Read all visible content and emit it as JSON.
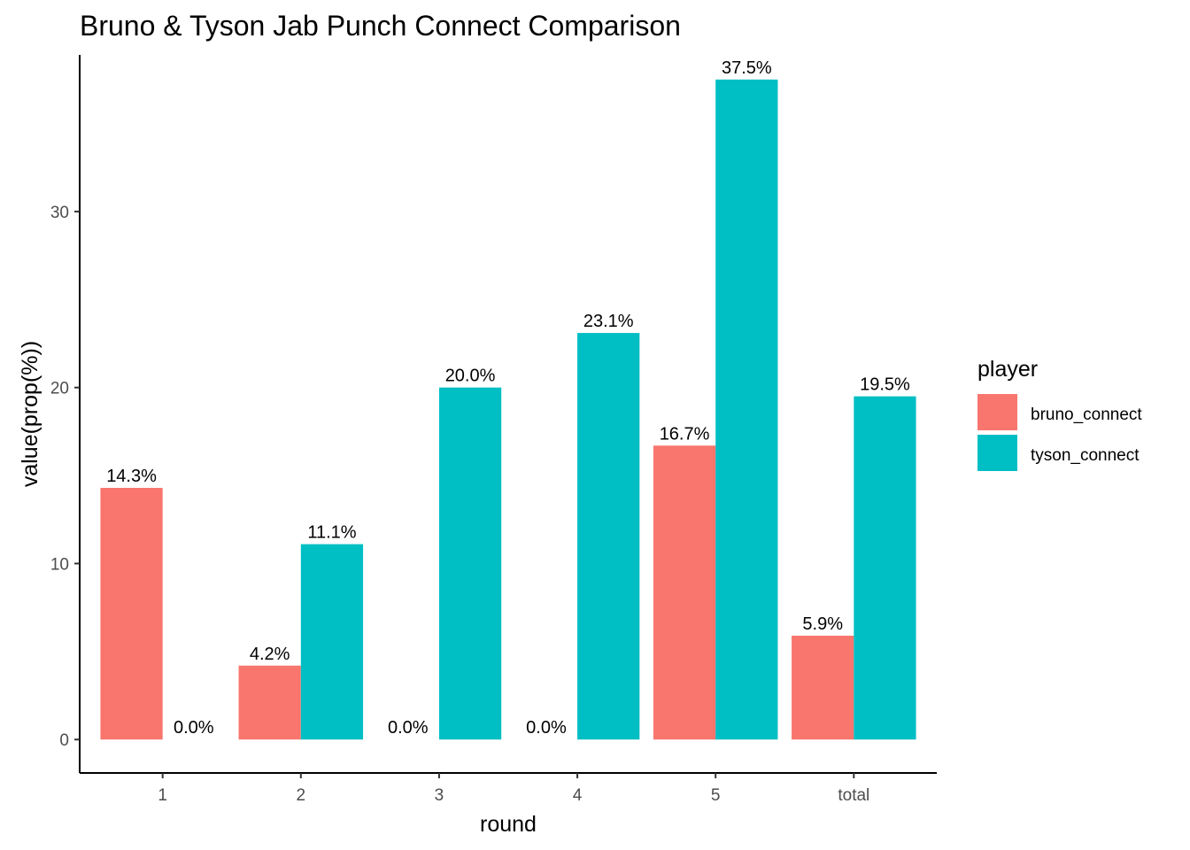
{
  "chart_data": {
    "type": "bar",
    "title": "Bruno & Tyson Jab Punch Connect Comparison",
    "xlabel": "round",
    "ylabel": "value(prop(%))",
    "categories": [
      "1",
      "2",
      "3",
      "4",
      "5",
      "total"
    ],
    "ylim": [
      -1.9,
      38.9
    ],
    "yticks": [
      0,
      10,
      20,
      30
    ],
    "ytick_labels": [
      "0",
      "10",
      "20",
      "30"
    ],
    "grid": false,
    "legend": {
      "title": "player",
      "position": "right"
    },
    "series": [
      {
        "name": "bruno_connect",
        "color": "#F8766D",
        "values": [
          14.3,
          4.2,
          0.0,
          0.0,
          16.7,
          5.9
        ],
        "labels": [
          "14.3%",
          "4.2%",
          "0.0%",
          "0.0%",
          "16.7%",
          "5.9%"
        ]
      },
      {
        "name": "tyson_connect",
        "color": "#00BFC4",
        "values": [
          0.0,
          11.1,
          20.0,
          23.1,
          37.5,
          19.5
        ],
        "labels": [
          "0.0%",
          "11.1%",
          "20.0%",
          "23.1%",
          "37.5%",
          "19.5%"
        ]
      }
    ]
  }
}
